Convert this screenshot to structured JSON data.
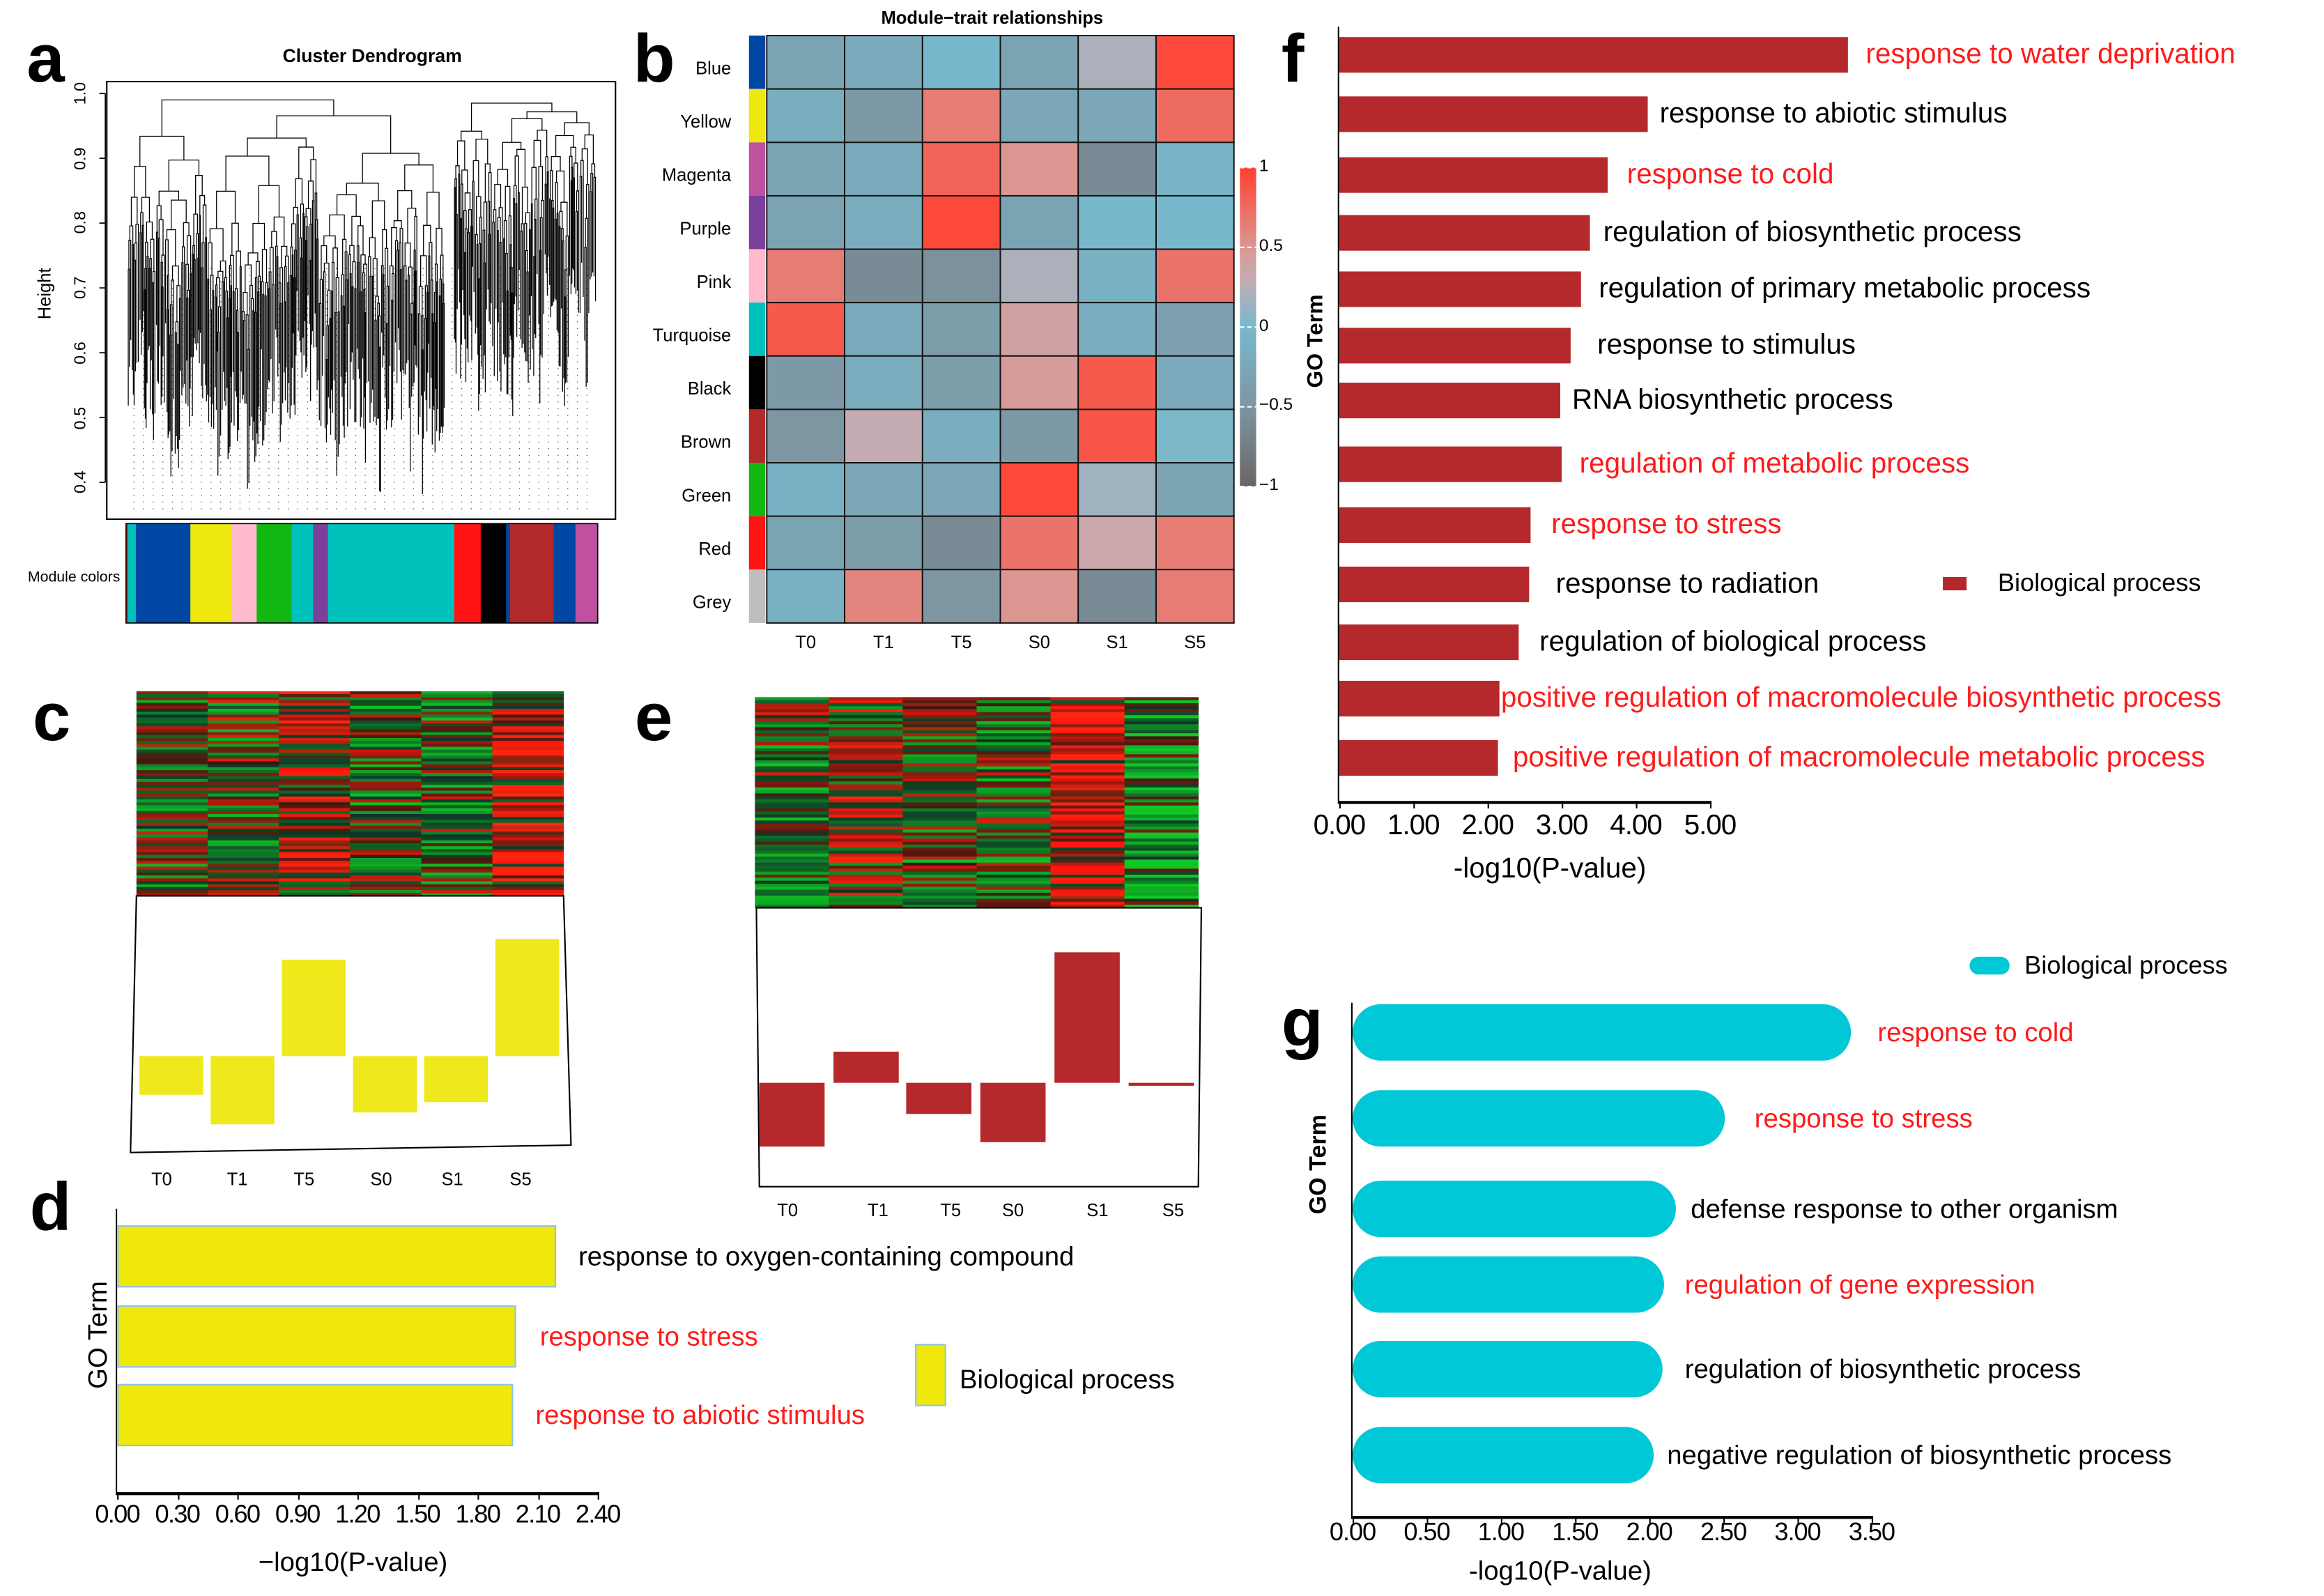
{
  "panel_letters": {
    "a": "a",
    "b": "b",
    "c": "c",
    "d": "d",
    "e": "e",
    "f": "f",
    "g": "g"
  },
  "colors": {
    "go_bar_f": "#b5282b",
    "go_bar_d": "#f0e80a",
    "go_bar_d_border": "#8ec4ea",
    "go_bar_g": "#00c8d7",
    "trend_c": "#efe81a",
    "trend_e": "#b5282b",
    "highlight_text": "#ff1a1a"
  },
  "chart_data": [
    {
      "id": "a",
      "type": "dendrogram",
      "title": "Cluster Dendrogram",
      "ylabel": "Height",
      "ylim": [
        0.35,
        1.0
      ],
      "yticks": [
        "0.4",
        "0.5",
        "0.6",
        "0.7",
        "0.8",
        "0.9",
        "1.0"
      ],
      "ytick_values": [
        0.4,
        0.5,
        0.6,
        0.7,
        0.8,
        0.9,
        1.0
      ],
      "module_colors_label": "Module colors",
      "module_colors": [
        "red",
        "turquoise",
        "blue",
        "yellow",
        "pink",
        "green",
        "turquoise",
        "purple",
        "turquoise",
        "red",
        "black",
        "blue",
        "brown",
        "blue",
        "magenta"
      ]
    },
    {
      "id": "b",
      "type": "heatmap",
      "title": "Module−trait relationships",
      "columns": [
        "T0",
        "T1",
        "T5",
        "S0",
        "S1",
        "S5"
      ],
      "rows": [
        "Blue",
        "Yellow",
        "Magenta",
        "Purple",
        "Pink",
        "Turquoise",
        "Black",
        "Brown",
        "Green",
        "Red",
        "Grey"
      ],
      "row_colors": [
        "#0047a3",
        "#efe80f",
        "#c050a0",
        "#7b3f9c",
        "#ffbacb",
        "#00c2bc",
        "#000000",
        "#b22a2a",
        "#12b812",
        "#ff1313",
        "#bebebe"
      ],
      "values": [
        [
          -0.3,
          -0.2,
          0.0,
          -0.3,
          0.2,
          0.95
        ],
        [
          -0.15,
          -0.45,
          0.65,
          -0.25,
          -0.25,
          0.75
        ],
        [
          -0.3,
          -0.2,
          0.8,
          0.5,
          -0.6,
          -0.05
        ],
        [
          -0.3,
          -0.15,
          0.95,
          -0.3,
          0.0,
          0.0
        ],
        [
          0.65,
          -0.6,
          -0.55,
          0.2,
          -0.1,
          0.7
        ],
        [
          0.85,
          -0.2,
          -0.4,
          0.4,
          -0.15,
          -0.35
        ],
        [
          -0.45,
          -0.15,
          -0.4,
          0.45,
          0.85,
          -0.2
        ],
        [
          -0.5,
          0.3,
          -0.15,
          -0.45,
          0.88,
          0.02
        ],
        [
          -0.1,
          -0.25,
          -0.25,
          0.95,
          0.15,
          -0.3
        ],
        [
          -0.3,
          -0.4,
          -0.6,
          0.7,
          0.35,
          0.65
        ],
        [
          -0.12,
          0.6,
          -0.5,
          0.5,
          -0.6,
          0.65
        ]
      ],
      "colorbar": {
        "range": [
          -1,
          1
        ],
        "ticks": [
          "1",
          "0.5",
          "0",
          "−0.5",
          "−1"
        ],
        "tick_values": [
          1,
          0.5,
          0,
          -0.5,
          -1
        ]
      }
    },
    {
      "id": "c",
      "type": "bar",
      "note": "module expression heatmap with eigengene bars",
      "categories": [
        "T0",
        "T1",
        "T5",
        "S0",
        "S1",
        "S5"
      ],
      "values": [
        -0.26,
        -0.46,
        0.65,
        -0.38,
        -0.31,
        0.79
      ]
    },
    {
      "id": "d",
      "type": "bar",
      "orientation": "horizontal",
      "ylabel": "GO Term",
      "xlabel": "−log10(P-value)",
      "xlim": [
        0,
        2.4
      ],
      "xticks": [
        "0.00",
        "0.30",
        "0.60",
        "0.90",
        "1.20",
        "1.50",
        "1.80",
        "2.10",
        "2.40"
      ],
      "legend": "Biological process",
      "terms": [
        {
          "label": "response to oxygen-containing compound",
          "value": 2.19,
          "highlight": false
        },
        {
          "label": "response to stress",
          "value": 1.99,
          "highlight": true
        },
        {
          "label": "response to abiotic stimulus",
          "value": 1.98,
          "highlight": true
        }
      ]
    },
    {
      "id": "e",
      "type": "bar",
      "note": "module expression heatmap with eigengene bars",
      "categories": [
        "T0",
        "T1",
        "T5",
        "S0",
        "S1",
        "S5"
      ],
      "values": [
        -0.43,
        0.21,
        -0.21,
        -0.4,
        0.88,
        -0.02
      ]
    },
    {
      "id": "f",
      "type": "bar",
      "orientation": "horizontal",
      "ylabel": "GO Term",
      "xlabel": "-log10(P-value)",
      "xlim": [
        0,
        5
      ],
      "xticks": [
        "0.00",
        "1.00",
        "2.00",
        "3.00",
        "4.00",
        "5.00"
      ],
      "legend": "Biological process",
      "terms": [
        {
          "label": "response to water deprivation",
          "value": 6.86,
          "highlight": true
        },
        {
          "label": "response to abiotic stimulus",
          "value": 4.16,
          "highlight": false
        },
        {
          "label": "response to cold",
          "value": 3.62,
          "highlight": true
        },
        {
          "label": "regulation of biosynthetic process",
          "value": 3.38,
          "highlight": false
        },
        {
          "label": "regulation of primary metabolic process",
          "value": 3.26,
          "highlight": false
        },
        {
          "label": "response to stimulus",
          "value": 3.12,
          "highlight": false
        },
        {
          "label": "RNA biosynthetic process",
          "value": 2.98,
          "highlight": false
        },
        {
          "label": "regulation of metabolic process",
          "value": 3.0,
          "highlight": true
        },
        {
          "label": "response to stress",
          "value": 2.58,
          "highlight": true
        },
        {
          "label": "response to radiation",
          "value": 2.56,
          "highlight": false
        },
        {
          "label": "regulation of biological process",
          "value": 2.42,
          "highlight": false
        },
        {
          "label": "positive regulation of macromolecule biosynthetic process",
          "value": 2.16,
          "highlight": true
        },
        {
          "label": "positive regulation of macromolecule metabolic process",
          "value": 2.14,
          "highlight": true
        }
      ]
    },
    {
      "id": "g",
      "type": "bar",
      "orientation": "horizontal",
      "ylabel": "GO Term",
      "xlabel": "-log10(P-value)",
      "xlim": [
        0,
        3.5
      ],
      "xticks": [
        "0.00",
        "0.50",
        "1.00",
        "1.50",
        "2.00",
        "2.50",
        "3.00",
        "3.50"
      ],
      "legend": "Biological process",
      "terms": [
        {
          "label": "response to cold",
          "value": 3.36,
          "highlight": true
        },
        {
          "label": "response to stress",
          "value": 2.51,
          "highlight": true
        },
        {
          "label": "defense response to other organism",
          "value": 2.18,
          "highlight": false
        },
        {
          "label": "regulation of gene expression",
          "value": 2.1,
          "highlight": true
        },
        {
          "label": "regulation of biosynthetic process",
          "value": 2.09,
          "highlight": false
        },
        {
          "label": "negative regulation of biosynthetic process",
          "value": 2.03,
          "highlight": false
        }
      ]
    }
  ]
}
